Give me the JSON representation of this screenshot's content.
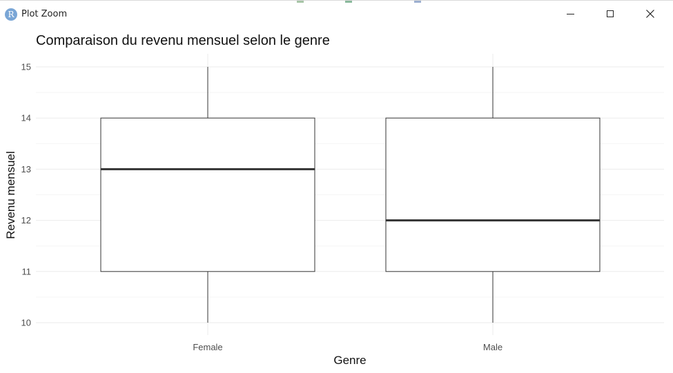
{
  "window": {
    "title": "Plot Zoom",
    "app_icon_glyph": "R",
    "icons": {
      "app": "r-logo-icon",
      "minimize": "minimize-icon",
      "maximize": "maximize-icon",
      "close": "close-icon"
    }
  },
  "chart_data": {
    "type": "boxplot",
    "title": "Comparaison du revenu mensuel selon le genre",
    "xlabel": "Genre",
    "ylabel": "Revenu mensuel",
    "ylim": [
      10,
      15
    ],
    "yticks": [
      10,
      11,
      12,
      13,
      14,
      15
    ],
    "grid": true,
    "categories": [
      "Female",
      "Male"
    ],
    "boxes": [
      {
        "category": "Female",
        "min": 10,
        "q1": 11,
        "median": 13,
        "q3": 14,
        "max": 15
      },
      {
        "category": "Male",
        "min": 10,
        "q1": 11,
        "median": 12,
        "q3": 14,
        "max": 15
      }
    ],
    "colors": {
      "box_fill": "#ffffff",
      "box_stroke": "#333333",
      "median": "#333333",
      "grid_major": "#ebebeb",
      "grid_minor": "#f5f5f5"
    }
  }
}
